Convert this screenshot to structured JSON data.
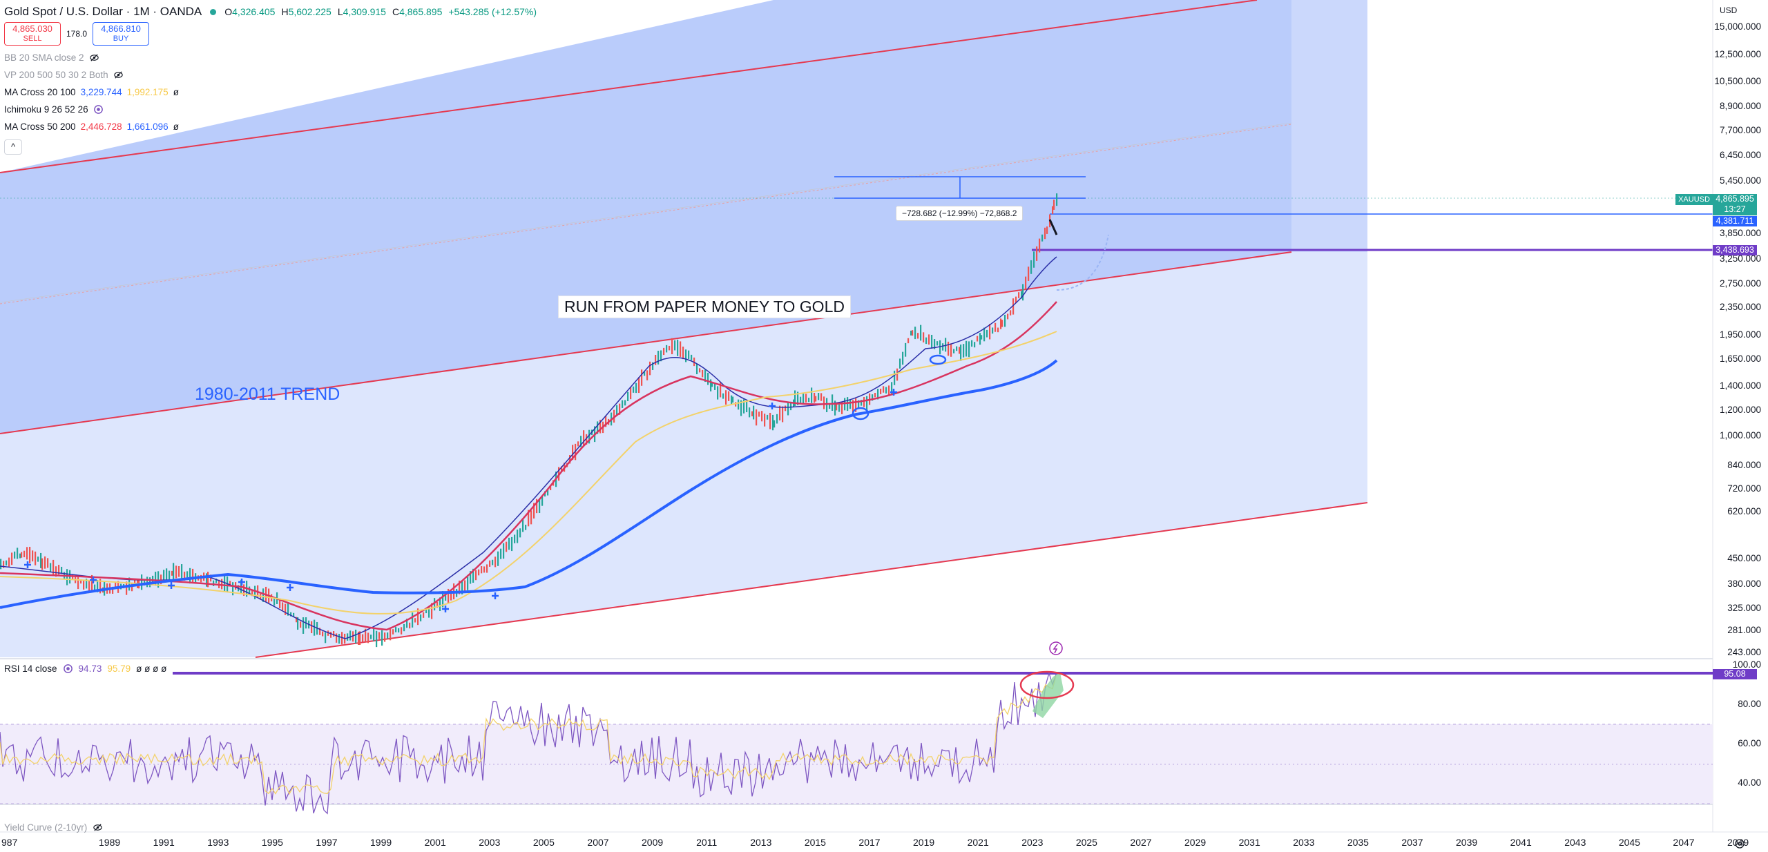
{
  "header": {
    "symbol": "Gold Spot / U.S. Dollar · 1M · OANDA",
    "ohlc": [
      {
        "k": "O",
        "v": "4,326.405"
      },
      {
        "k": "H",
        "v": "5,602.225"
      },
      {
        "k": "L",
        "v": "4,309.915"
      },
      {
        "k": "C",
        "v": "4,865.895"
      }
    ],
    "change": "+543.285 (+12.57%)"
  },
  "trade": {
    "sell_price": "4,865.030",
    "sell_label": "SELL",
    "spread": "178.0",
    "buy_price": "4,866.810",
    "buy_label": "BUY"
  },
  "indicators": [
    {
      "name": "BB 20 SMA close 2",
      "values": [],
      "hidden": true
    },
    {
      "name": "VP 200 500 50 30 2 Both",
      "values": [],
      "hidden": true
    },
    {
      "name": "MA Cross 20 100",
      "values": [
        "3,229.744",
        "1,992.175"
      ],
      "colors": [
        "#2962ff",
        "#f7c948"
      ],
      "suffix": "ø",
      "hidden": false
    },
    {
      "name": "Ichimoku 9 26 52 26",
      "values": [],
      "hidden": false
    },
    {
      "name": "MA Cross 50 200",
      "values": [
        "2,446.728",
        "1,661.096"
      ],
      "colors": [
        "#f23645",
        "#2962ff"
      ],
      "suffix": "ø",
      "hidden": false
    }
  ],
  "collapse_glyph": "^",
  "price_axis": {
    "currency": "USD",
    "ticks": [
      "15,000.000",
      "12,500.000",
      "10,500.000",
      "8,900.000",
      "7,700.000",
      "6,450.000",
      "5,450.000",
      "3,850.000",
      "3,250.000",
      "2,750.000",
      "2,350.000",
      "1,950.000",
      "1,650.000",
      "1,400.000",
      "1,200.000",
      "1,000.000",
      "840.000",
      "720.000",
      "620.000",
      "450.000",
      "380.000",
      "325.000",
      "281.000",
      "243.000"
    ]
  },
  "price_tags": {
    "symbol": "XAUUSD",
    "last": "4,865.895",
    "countdown": "13:27",
    "line1": "4,381.711",
    "line2": "3,438.693"
  },
  "annotations": {
    "headline": "RUN FROM PAPER MONEY TO GOLD",
    "trend": "1980-2011 TREND",
    "measure": "−728.682 (−12.99%) −72,868.2"
  },
  "rsi": {
    "name": "RSI 14 close",
    "values": [
      "94.73",
      "95.79"
    ],
    "placeholders": "ø ø ø ø",
    "level_tag": "95.08",
    "ticks": [
      "100.00",
      "80.00",
      "60.00",
      "40.00"
    ]
  },
  "yield_curve": {
    "name": "Yield Curve (2-10yr)"
  },
  "time_axis": {
    "years": [
      "987",
      "1989",
      "1991",
      "1993",
      "1995",
      "1997",
      "1999",
      "2001",
      "2003",
      "2005",
      "2007",
      "2009",
      "2011",
      "2013",
      "2015",
      "2017",
      "2019",
      "2021",
      "2023",
      "2025",
      "2027",
      "2029",
      "2031",
      "2033",
      "2035",
      "2037",
      "2039",
      "2041",
      "2043",
      "2045",
      "2047",
      "2049"
    ]
  },
  "colors": {
    "channel_fill": "#b3c8fb",
    "channel_border": "#e53950",
    "ma_blue": "#2962ff",
    "ma_red": "#d8345f",
    "ma_yellow": "#f7c948",
    "rsi_line": "#7e57c2",
    "rsi_level": "#6f3cc7",
    "up": "#26a69a",
    "down": "#ef5350"
  }
}
